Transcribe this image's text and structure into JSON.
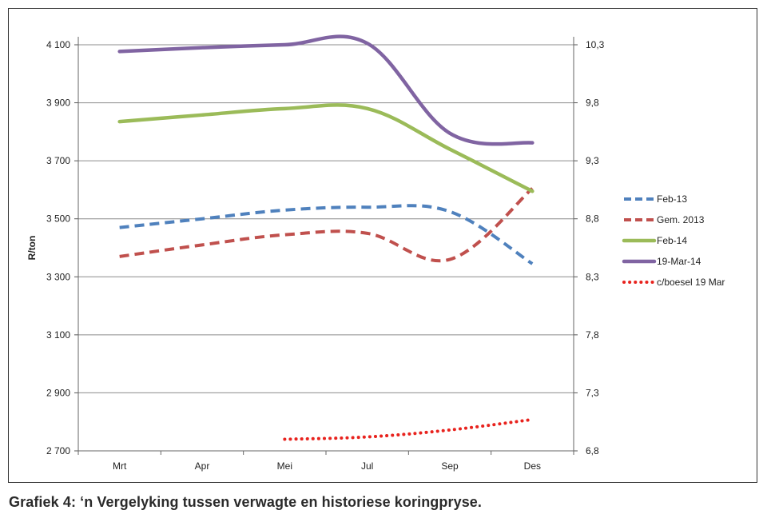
{
  "caption": "Grafiek 4: ‘n Vergelyking tussen verwagte en historiese koringpryse.",
  "chart_data": {
    "type": "line",
    "categories": [
      "Mrt",
      "Apr",
      "Mei",
      "Jul",
      "Sep",
      "Des"
    ],
    "ylabel": "R/ton",
    "ylabel_right": "",
    "ylim": [
      2700,
      4100
    ],
    "ylim_right": [
      6.8,
      10.3
    ],
    "yticks": [
      "2 700",
      "2 900",
      "3 100",
      "3 300",
      "3 500",
      "3 700",
      "3 900",
      "4 100"
    ],
    "yticks_right": [
      "6,8",
      "7,3",
      "7,8",
      "8,3",
      "8,8",
      "9,3",
      "9,8",
      "10,3"
    ],
    "grid": true,
    "legend_position": "right",
    "series": [
      {
        "name": "Feb-13",
        "axis": "left",
        "style": "dashed",
        "color": "#4F81BD",
        "values": [
          3470,
          3500,
          3530,
          3540,
          3525,
          3345
        ]
      },
      {
        "name": "Gem. 2013",
        "axis": "left",
        "style": "dashed",
        "color": "#C0504D",
        "values": [
          3370,
          3410,
          3445,
          3450,
          3360,
          3605
        ]
      },
      {
        "name": "Feb-14",
        "axis": "left",
        "style": "solid",
        "color": "#9BBB59",
        "values": [
          3835,
          3858,
          3880,
          3880,
          3740,
          3595
        ]
      },
      {
        "name": "19-Mar-14",
        "axis": "left",
        "style": "solid",
        "color": "#8064A2",
        "values": [
          4077,
          4090,
          4100,
          4105,
          3795,
          3762
        ]
      },
      {
        "name": "c/boesel 19 Mar",
        "axis": "right",
        "style": "dotted",
        "color": "#E8231E",
        "values": [
          null,
          null,
          6.9,
          6.92,
          6.98,
          7.07
        ]
      }
    ]
  }
}
